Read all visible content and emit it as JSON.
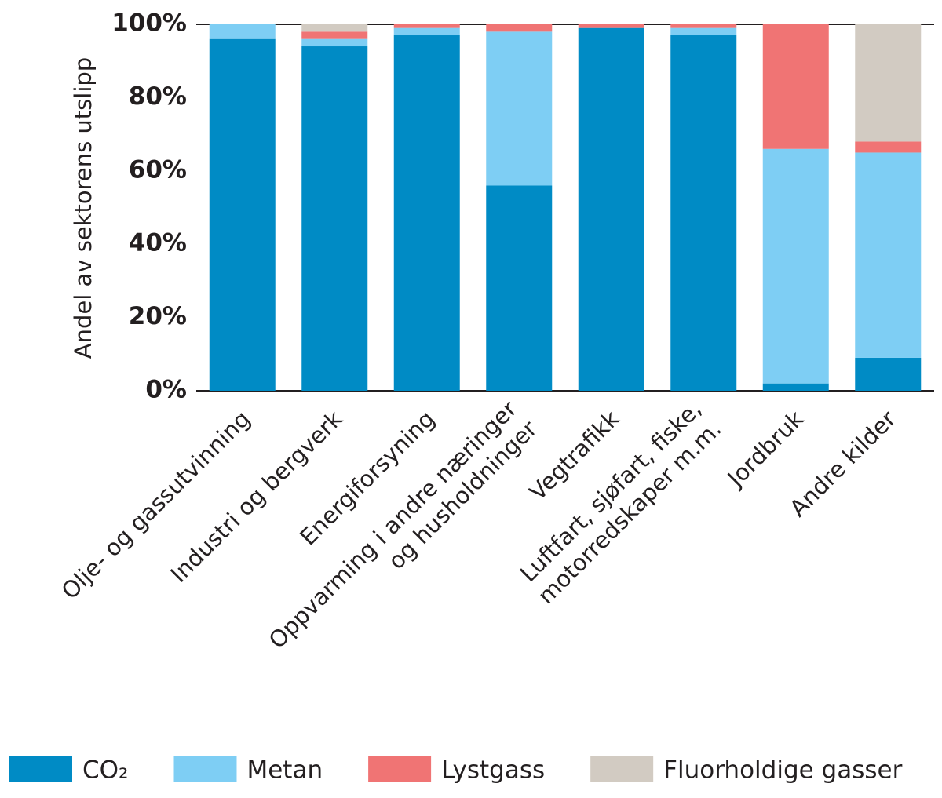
{
  "chart_data": {
    "type": "stacked_bar",
    "y_label": "Andel av sektorens utslipp",
    "categories": [
      [
        "Olje- og gassutvinning"
      ],
      [
        "Industri og bergverk"
      ],
      [
        "Energiforsyning"
      ],
      [
        "Oppvarming i andre næringer",
        "og husholdninger"
      ],
      [
        "Vegtrafikk"
      ],
      [
        "Luftfart, sjøfart, fiske,",
        "motorredskaper m.m."
      ],
      [
        "Jordbruk"
      ],
      [
        "Andre kilder"
      ]
    ],
    "series": [
      {
        "name": "CO₂",
        "color": "#008bc5",
        "values": [
          96,
          94,
          97,
          56,
          99,
          97,
          2,
          9
        ]
      },
      {
        "name": "Metan",
        "color": "#7ecef4",
        "values": [
          4,
          2,
          2,
          42,
          0,
          2,
          64,
          56
        ]
      },
      {
        "name": "Lystgass",
        "color": "#f07474",
        "values": [
          0,
          2,
          1,
          2,
          1,
          1,
          34,
          3
        ]
      },
      {
        "name": "Fluorholdige gasser",
        "color": "#d2cbc2",
        "values": [
          0,
          2,
          0,
          0,
          0,
          0,
          0,
          32
        ]
      }
    ],
    "ylim": [
      0,
      100
    ],
    "yticks": [
      {
        "value": 0,
        "label": "0%"
      },
      {
        "value": 20,
        "label": "20%"
      },
      {
        "value": 40,
        "label": "40%"
      },
      {
        "value": 60,
        "label": "60%"
      },
      {
        "value": 80,
        "label": "80%"
      },
      {
        "value": 100,
        "label": "100%"
      }
    ],
    "grid": false,
    "legend": "bottom"
  }
}
